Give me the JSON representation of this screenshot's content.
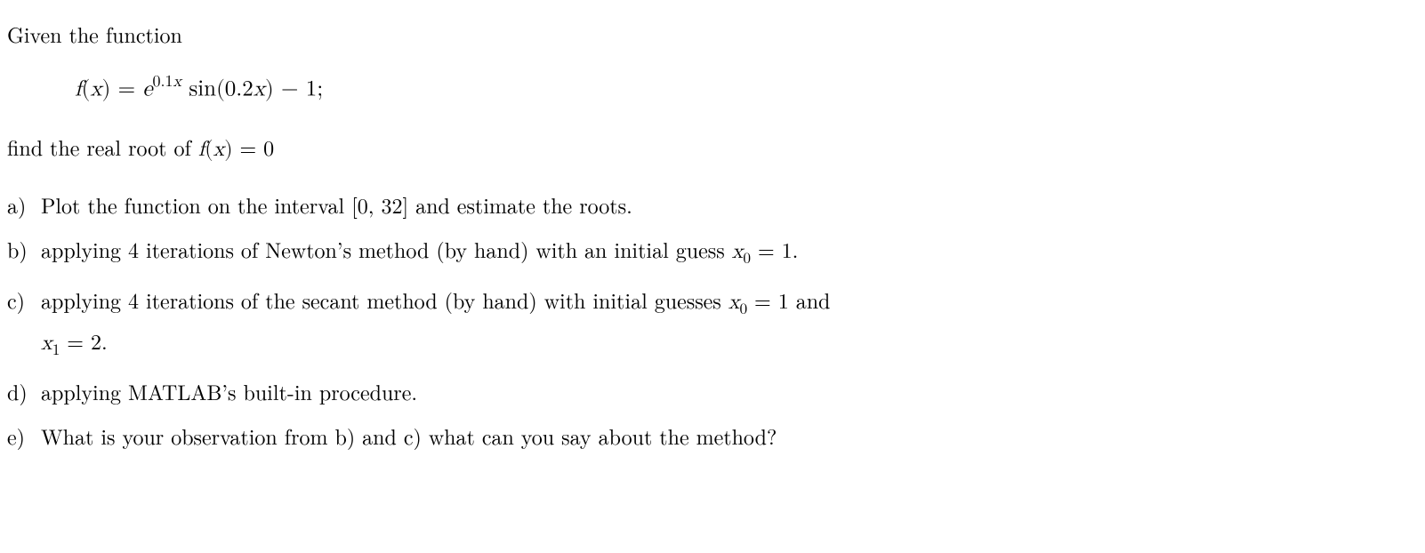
{
  "intro": "Given the function",
  "equation": {
    "lhs": "f",
    "arg": "x",
    "exp_coef": "0.1",
    "exp_var": "x",
    "trig": "sin",
    "trig_coef": "0.2",
    "trig_var": "x",
    "constant": "1"
  },
  "find_line_prefix": "find the real root of ",
  "find_line_math": "f(x) = 0",
  "parts": {
    "a": {
      "marker": "a)",
      "text": "Plot the function on the interval [0, 32] and estimate the roots."
    },
    "b": {
      "marker": "b)",
      "prefix": "applying 4 iterations of Newton’s method (by hand) with an initial guess ",
      "x0_var": "x",
      "x0_sub": "0",
      "x0_val": "1"
    },
    "c": {
      "marker": "c)",
      "line1_prefix": "applying 4 iterations of the secant method (by hand) with initial guesses ",
      "x0_var": "x",
      "x0_sub": "0",
      "x0_val": "1",
      "line1_suffix": " and",
      "x1_var": "x",
      "x1_sub": "1",
      "x1_val": "2"
    },
    "d": {
      "marker": "d)",
      "text": "applying MATLAB’s built-in procedure."
    },
    "e": {
      "marker": "e)",
      "text": "What is your observation from b) and c) what can you say about the method?"
    }
  }
}
